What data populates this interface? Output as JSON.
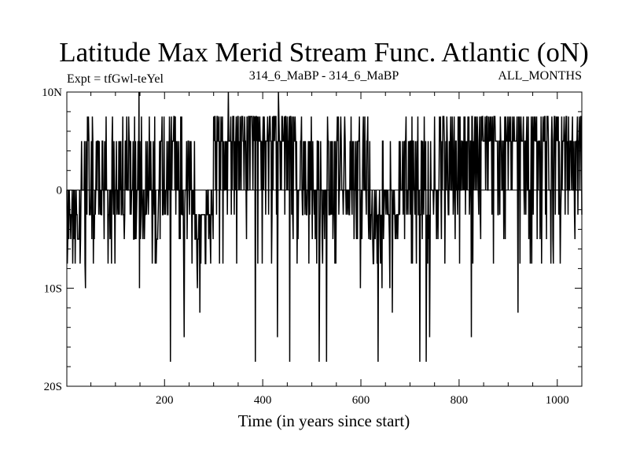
{
  "chart_data": {
    "type": "line",
    "title": "Latitude Max Merid Stream Func. Atlantic (oN)",
    "subtitle_left": "Expt = tfGwl-teYel",
    "subtitle_center": "314_6_MaBP - 314_6_MaBP",
    "subtitle_right": "ALL_MONTHS",
    "xlabel": "Time (in years since start)",
    "ylabel": "",
    "xlim": [
      1,
      1050
    ],
    "ylim": [
      -20,
      10
    ],
    "x_ticks": [
      200,
      400,
      600,
      800,
      1000
    ],
    "x_tick_labels": [
      "200",
      "400",
      "600",
      "800",
      "1000"
    ],
    "y_ticks": [
      10,
      0,
      -10,
      -20
    ],
    "y_tick_labels": [
      "10N",
      "0",
      "10S",
      "20S"
    ],
    "levels": [
      7.5,
      5,
      0,
      -2.5,
      -5,
      -7.5,
      -10,
      -12.5,
      -15,
      -17.5
    ],
    "series": [
      {
        "name": "Latitude of max meridional stream function",
        "n_points": 1050,
        "regimes": [
          {
            "from": 1,
            "to": 30,
            "mean": -3
          },
          {
            "from": 30,
            "to": 90,
            "mean": 1.5
          },
          {
            "from": 90,
            "to": 210,
            "mean": 2
          },
          {
            "from": 210,
            "to": 260,
            "mean": -1
          },
          {
            "from": 260,
            "to": 300,
            "mean": -1.5
          },
          {
            "from": 300,
            "to": 470,
            "mean": 3
          },
          {
            "from": 470,
            "to": 570,
            "mean": 0
          },
          {
            "from": 570,
            "to": 615,
            "mean": 1
          },
          {
            "from": 615,
            "to": 680,
            "mean": -3
          },
          {
            "from": 680,
            "to": 760,
            "mean": 0
          },
          {
            "from": 760,
            "to": 1050,
            "mean": 3
          }
        ],
        "extremes": [
          {
            "x": 148,
            "y": 10
          },
          {
            "x": 330,
            "y": 10
          },
          {
            "x": 432,
            "y": 10
          },
          {
            "x": 212,
            "y": -17.5
          },
          {
            "x": 385,
            "y": -17.5
          },
          {
            "x": 455,
            "y": -17.5
          },
          {
            "x": 515,
            "y": -17.5
          },
          {
            "x": 530,
            "y": -17.5
          },
          {
            "x": 635,
            "y": -17.5
          },
          {
            "x": 720,
            "y": -17.5
          },
          {
            "x": 733,
            "y": -17.5
          },
          {
            "x": 240,
            "y": -15
          },
          {
            "x": 430,
            "y": -15
          },
          {
            "x": 740,
            "y": -15
          },
          {
            "x": 825,
            "y": -15
          },
          {
            "x": 920,
            "y": -12.5
          }
        ]
      }
    ]
  }
}
